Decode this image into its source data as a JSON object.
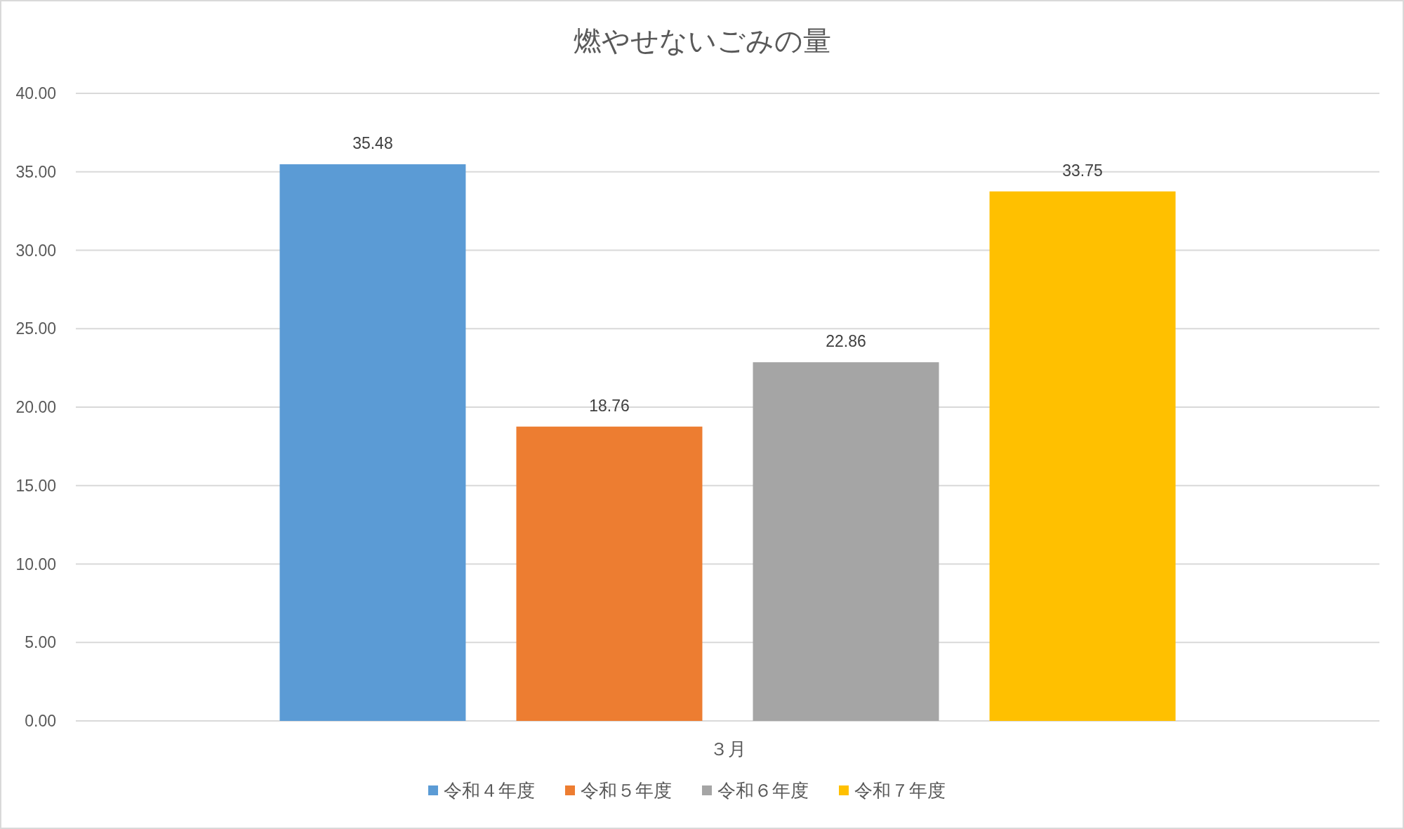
{
  "chart_data": {
    "type": "bar",
    "title": "燃やせないごみの量",
    "categories": [
      "３月"
    ],
    "series": [
      {
        "name": "令和４年度",
        "color": "#5b9bd5",
        "values": [
          35.48
        ]
      },
      {
        "name": "令和５年度",
        "color": "#ed7d31",
        "values": [
          18.76
        ]
      },
      {
        "name": "令和６年度",
        "color": "#a5a5a5",
        "values": [
          22.86
        ]
      },
      {
        "name": "令和７年度",
        "color": "#ffc000",
        "values": [
          33.75
        ]
      }
    ],
    "ylim": [
      0,
      40
    ],
    "yticks": [
      {
        "value": 0,
        "label": "0.00"
      },
      {
        "value": 5,
        "label": "5.00"
      },
      {
        "value": 10,
        "label": "10.00"
      },
      {
        "value": 15,
        "label": "15.00"
      },
      {
        "value": 20,
        "label": "20.00"
      },
      {
        "value": 25,
        "label": "25.00"
      },
      {
        "value": 30,
        "label": "30.00"
      },
      {
        "value": 35,
        "label": "35.00"
      },
      {
        "value": 40,
        "label": "40.00"
      }
    ],
    "grid": "y",
    "legend": "bottom",
    "data_labels": true
  }
}
